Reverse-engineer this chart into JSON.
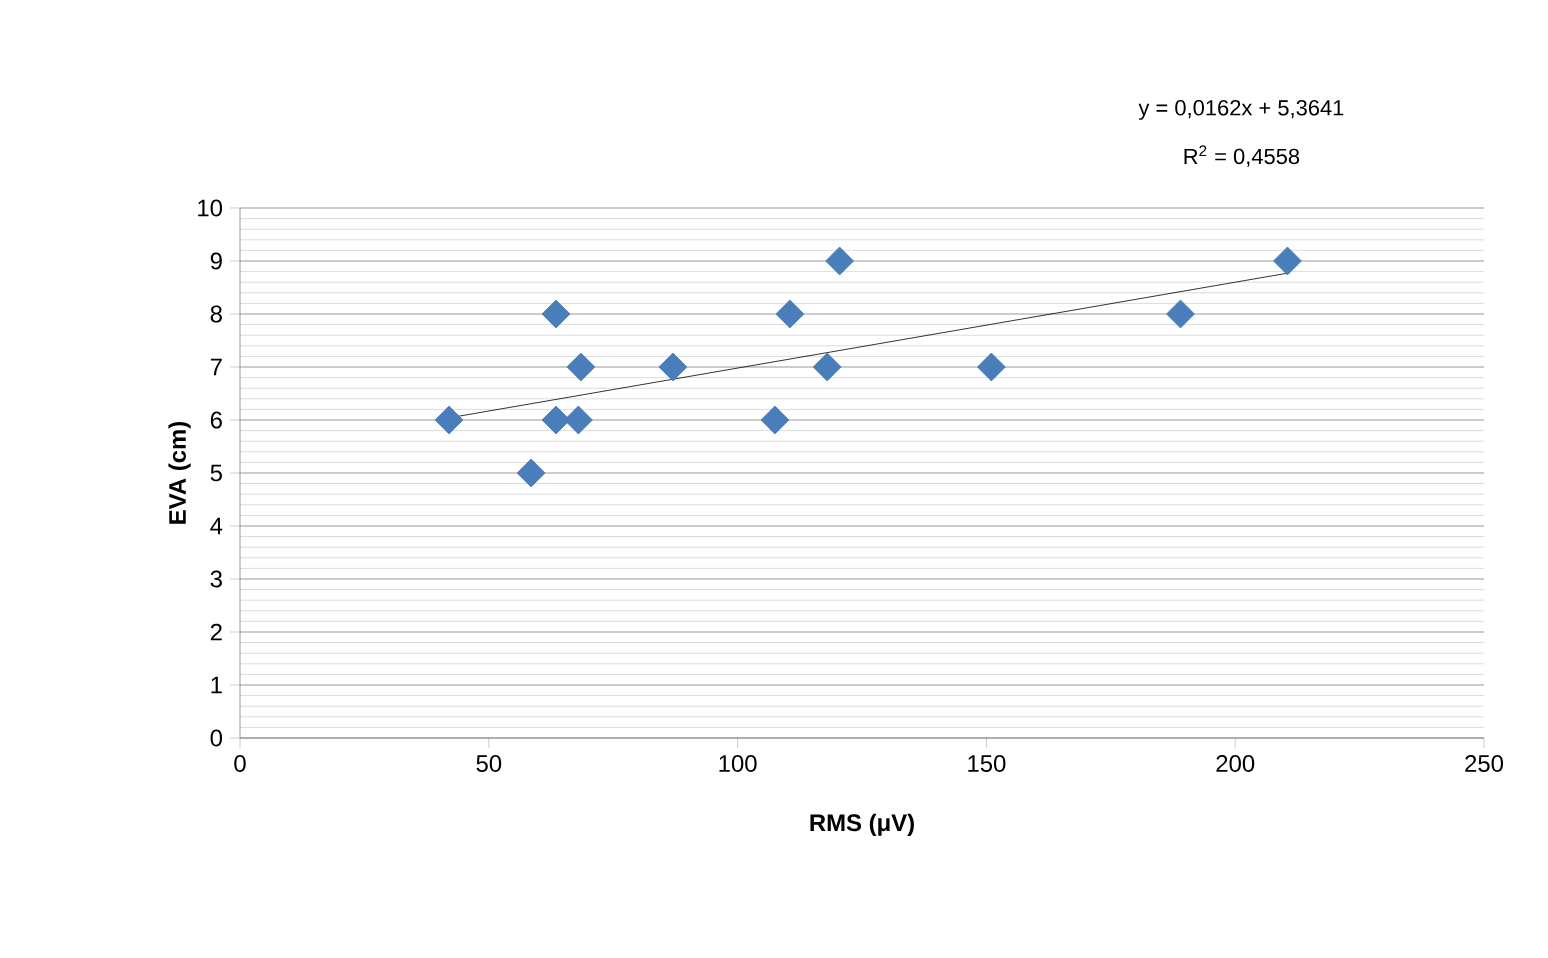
{
  "chart_data": {
    "type": "scatter",
    "xlabel": "RMS (μV)",
    "ylabel": "EVA (cm)",
    "annotations": [
      "y = 0,0162x + 5,3641",
      "R$^{2}$ = 0,4558"
    ],
    "series": [
      {
        "color": "#4a7ebb",
        "marker": "diamond",
        "x": [
          42,
          58.5,
          63.5,
          63.5,
          68,
          68.5,
          87,
          107.5,
          110.5,
          118,
          120.5,
          151,
          189,
          210.5
        ],
        "values": [
          6,
          5,
          8,
          6,
          6,
          7,
          7,
          6,
          8,
          7,
          9,
          7,
          8,
          9
        ]
      },
      {
        "type": "line",
        "color": "#000000",
        "marker": "none",
        "x": [
          42,
          210.5
        ],
        "values": [
          6.04,
          8.77
        ]
      }
    ],
    "xlim": [
      0,
      250
    ],
    "ylim": [
      0,
      10
    ],
    "xticks": [
      0,
      50,
      100,
      150,
      200,
      250
    ],
    "yticks": [
      0,
      1,
      2,
      3,
      4,
      5,
      6,
      7,
      8,
      9,
      10
    ],
    "grid": "y"
  }
}
